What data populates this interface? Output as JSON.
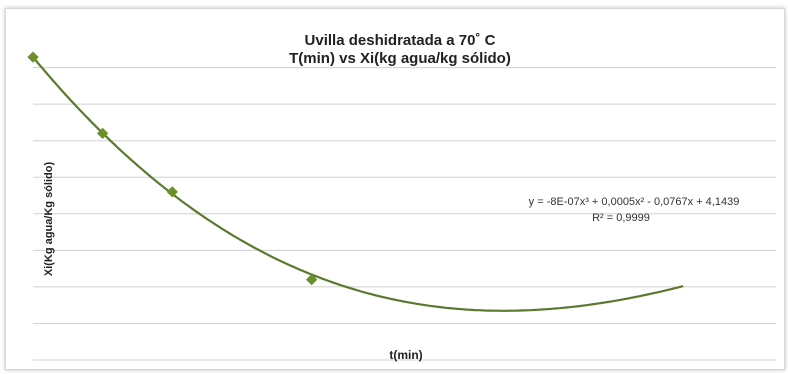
{
  "chart_data": {
    "type": "scatter",
    "title": "Uvilla deshidratada a 70˚ C",
    "subtitle": "T(min) vs Xi(kg agua/kg sólido)",
    "xlabel": "t(min)",
    "ylabel": "Xi(Kg agua/Kg sólido)",
    "xlim": [
      0,
      160
    ],
    "ylim": [
      0,
      4.2
    ],
    "grid": true,
    "series": [
      {
        "points": [
          {
            "x": 0,
            "y": 4.1439
          },
          {
            "x": 15,
            "y": 3.1
          },
          {
            "x": 30,
            "y": 2.3
          },
          {
            "x": 60,
            "y": 1.1
          }
        ]
      }
    ],
    "trendline": {
      "equation": "y = -8E-07x³ + 0,0005x² - 0,0767x + 4,1439",
      "r_squared": "R² = 0,9999",
      "coefficients": [
        -8e-07,
        0.0005,
        -0.0767,
        4.1439
      ],
      "x_range": [
        0,
        140
      ]
    },
    "colors": {
      "line": "#5a7a2e",
      "marker": "#6b8f2a",
      "grid": "#d0d0d0"
    }
  }
}
